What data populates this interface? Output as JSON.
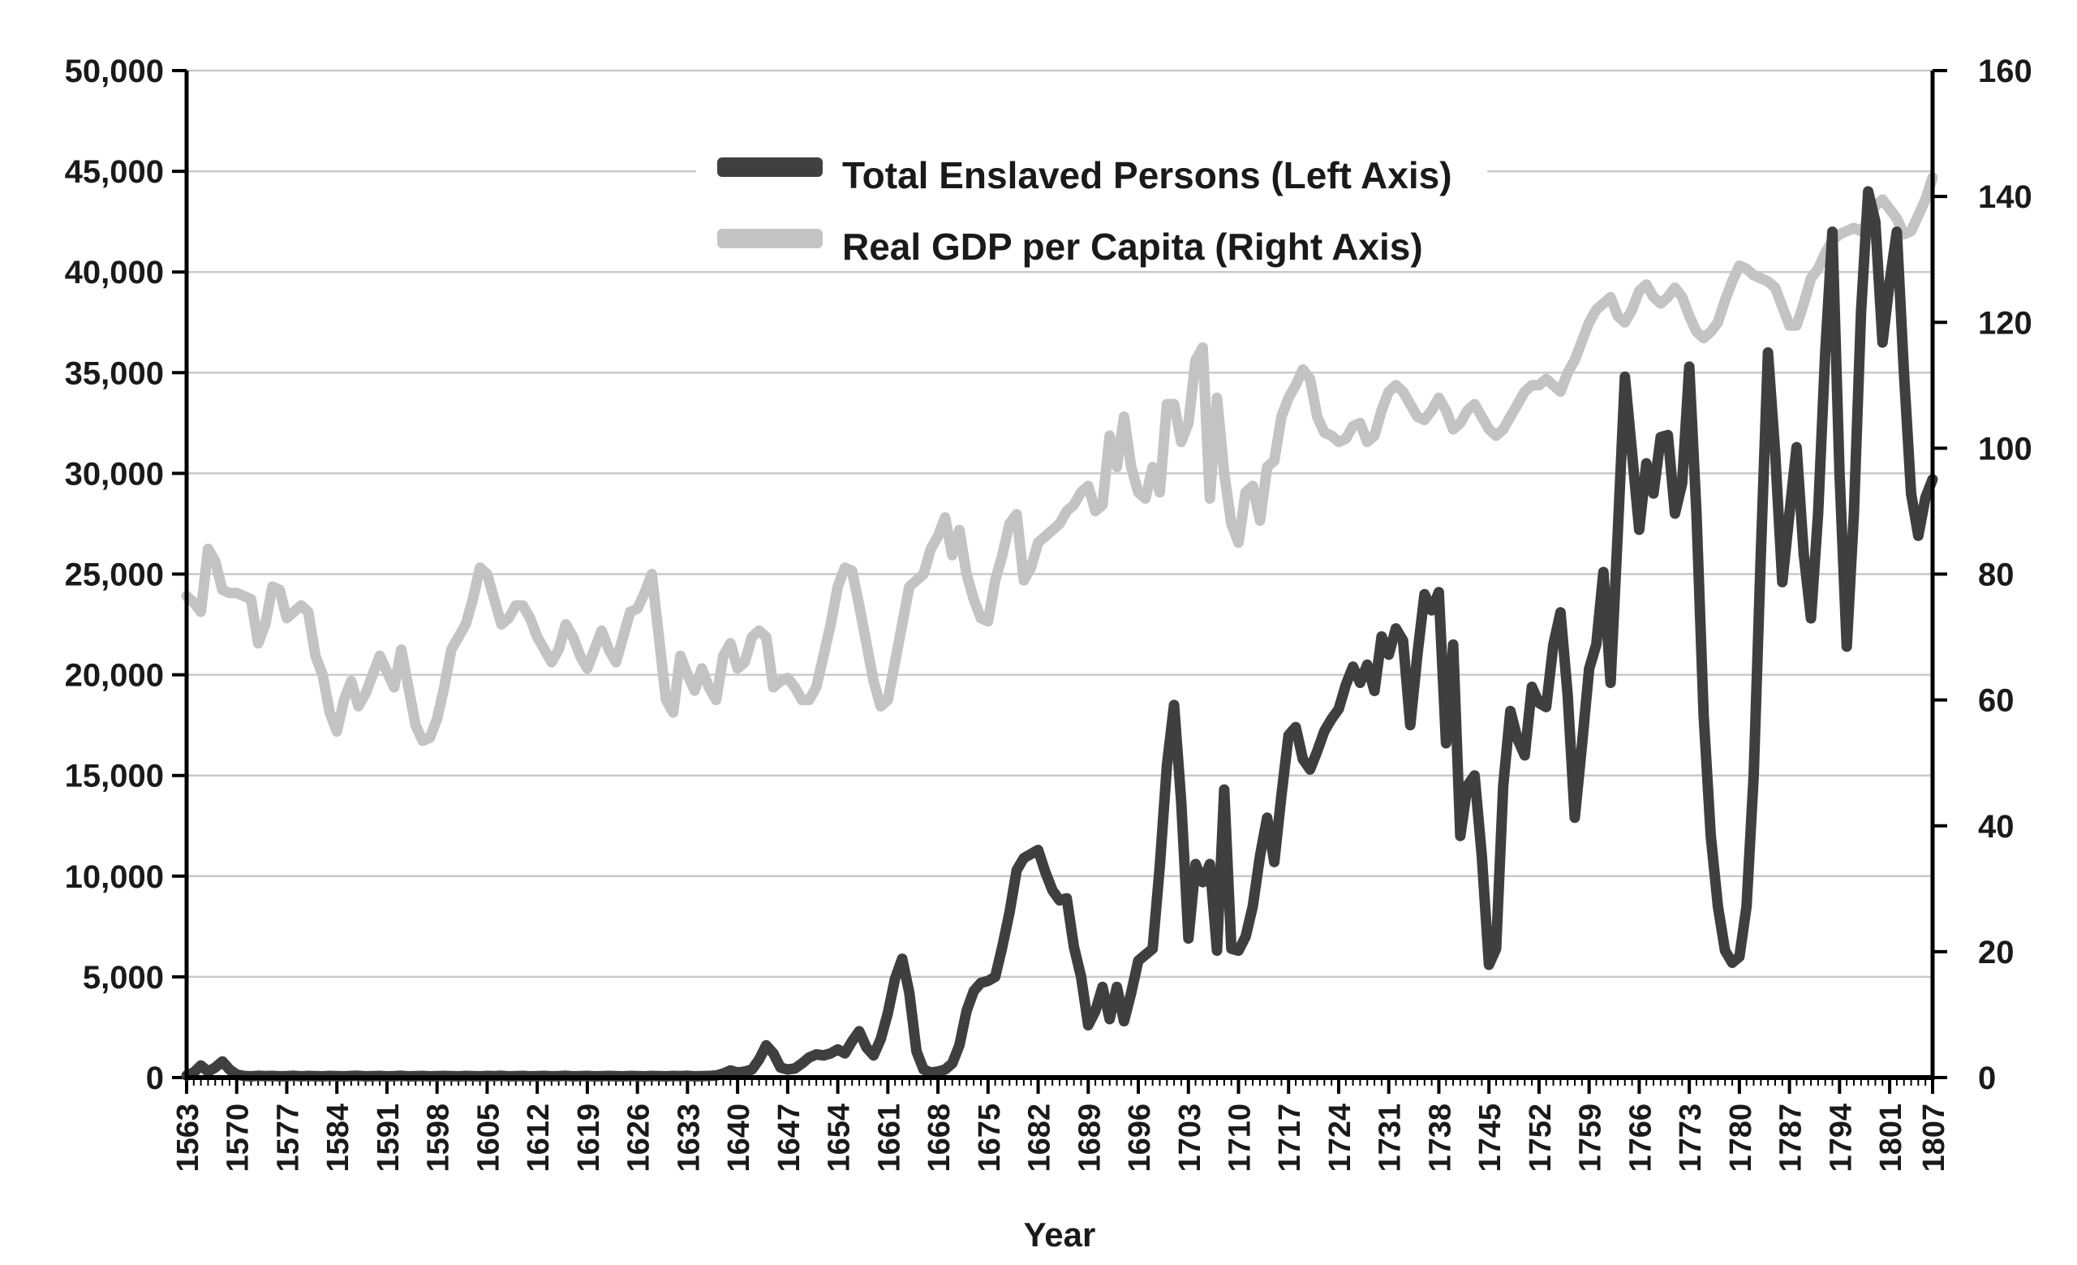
{
  "chart_data": {
    "type": "line",
    "title": "",
    "xlabel": "Year",
    "grid": true,
    "legend_position": "top-center",
    "background_color": "#ffffff",
    "gridline_color": "#c9c9c9",
    "axis_color": "#000000",
    "x_start": 1563,
    "x_end": 1807,
    "x_tick_years": [
      1563,
      1570,
      1577,
      1584,
      1591,
      1598,
      1605,
      1612,
      1619,
      1626,
      1633,
      1640,
      1647,
      1654,
      1661,
      1668,
      1675,
      1682,
      1689,
      1696,
      1703,
      1710,
      1717,
      1724,
      1731,
      1738,
      1745,
      1752,
      1759,
      1766,
      1773,
      1780,
      1787,
      1794,
      1801,
      1807
    ],
    "left_axis": {
      "min": 0,
      "max": 50000,
      "tick_values": [
        0,
        5000,
        10000,
        15000,
        20000,
        25000,
        30000,
        35000,
        40000,
        45000,
        50000
      ],
      "tick_labels": [
        "0",
        "5,000",
        "10,000",
        "15,000",
        "20,000",
        "25,000",
        "30,000",
        "35,000",
        "40,000",
        "45,000",
        "50,000"
      ]
    },
    "right_axis": {
      "min": 0,
      "max": 160,
      "tick_values": [
        0,
        20,
        40,
        60,
        80,
        100,
        120,
        140,
        160
      ],
      "tick_labels": [
        "0",
        "20",
        "40",
        "60",
        "80",
        "100",
        "120",
        "140",
        "160"
      ]
    },
    "series": [
      {
        "name": "Real GDP per Capita",
        "legend_label": "Real GDP per Capita (Right Axis)",
        "axis": "right",
        "color": "#c3c3c3",
        "z": 1,
        "values": [
          76.5,
          75.5,
          74,
          84,
          82,
          77.5,
          77,
          77,
          76.5,
          76,
          69,
          72,
          78,
          77.5,
          73,
          74,
          75,
          74,
          67,
          64,
          58,
          55,
          60,
          63,
          59,
          61,
          64,
          67,
          64.5,
          62,
          68,
          62,
          56,
          53.5,
          54,
          57,
          62,
          68,
          70,
          72,
          76,
          81,
          80,
          76,
          72,
          73,
          75,
          75,
          73,
          70,
          68,
          66,
          68,
          72,
          70,
          67,
          65,
          68,
          71,
          68,
          66,
          70,
          74,
          74.5,
          77,
          80,
          70,
          60,
          58,
          67,
          64,
          61.5,
          65,
          62,
          60,
          67,
          69,
          65,
          66,
          70,
          71,
          70,
          62,
          63,
          63.5,
          62,
          60,
          60,
          62,
          67,
          72,
          78,
          81,
          80.5,
          75,
          69,
          63,
          59,
          60,
          66,
          72,
          78,
          79,
          80,
          84,
          86,
          89,
          83,
          87,
          80,
          76,
          73,
          72.5,
          79,
          83,
          88,
          89.5,
          79,
          81,
          85,
          86,
          87,
          88,
          90,
          91,
          93,
          94,
          90,
          91,
          102,
          97,
          105,
          97,
          93,
          92,
          97,
          93,
          107,
          107,
          101,
          104,
          114,
          116,
          92,
          108,
          96,
          88,
          85,
          93,
          94,
          88.5,
          97,
          98,
          105,
          108,
          110,
          112.5,
          111,
          105,
          102.5,
          102,
          101,
          101.5,
          103.5,
          104,
          101,
          102,
          106,
          109,
          110,
          109,
          107,
          105,
          104.5,
          106,
          108,
          106,
          103,
          104,
          106,
          107,
          105,
          103,
          102,
          103,
          105,
          107,
          109,
          110,
          110,
          111,
          110,
          109,
          112,
          114,
          117,
          120,
          122,
          123,
          124,
          121,
          120,
          122,
          125,
          126,
          124,
          123,
          124,
          125.5,
          124,
          121,
          118.5,
          117.5,
          118.5,
          120,
          123.5,
          126.5,
          129,
          128.5,
          127.5,
          127,
          126.5,
          125.5,
          122.5,
          119.5,
          119.5,
          123,
          127,
          128.5,
          131,
          133,
          134,
          134.5,
          135,
          134.5,
          136,
          138.5,
          139.5,
          138,
          136.5,
          134,
          134.5,
          137,
          139.5,
          143
        ]
      },
      {
        "name": "Total Enslaved Persons",
        "legend_label": "Total Enslaved Persons (Left Axis)",
        "axis": "left",
        "color": "#3f3f3f",
        "z": 2,
        "values": [
          100,
          250,
          600,
          300,
          500,
          800,
          400,
          150,
          80,
          60,
          90,
          70,
          80,
          60,
          70,
          90,
          60,
          80,
          70,
          60,
          80,
          70,
          60,
          80,
          90,
          60,
          70,
          80,
          60,
          70,
          90,
          60,
          70,
          80,
          60,
          70,
          80,
          70,
          60,
          80,
          70,
          60,
          80,
          70,
          90,
          60,
          70,
          80,
          60,
          70,
          80,
          60,
          70,
          90,
          60,
          70,
          80,
          60,
          70,
          80,
          70,
          60,
          80,
          70,
          60,
          80,
          70,
          60,
          80,
          70,
          90,
          60,
          70,
          80,
          100,
          200,
          350,
          250,
          300,
          400,
          900,
          1600,
          1200,
          500,
          400,
          450,
          700,
          1000,
          1150,
          1100,
          1200,
          1400,
          1200,
          1800,
          2300,
          1500,
          1100,
          1900,
          3200,
          4900,
          5900,
          4200,
          1300,
          400,
          250,
          300,
          400,
          700,
          1600,
          3300,
          4300,
          4700,
          4800,
          5000,
          6500,
          8200,
          10300,
          10900,
          11100,
          11300,
          10200,
          9300,
          8800,
          8900,
          6500,
          5000,
          2600,
          3300,
          4500,
          2900,
          4500,
          2800,
          4200,
          5800,
          6100,
          6400,
          10500,
          15500,
          18500,
          13700,
          6900,
          10600,
          9700,
          10600,
          6300,
          14300,
          6400,
          6300,
          7000,
          8500,
          11000,
          12900,
          10700,
          14000,
          17000,
          17400,
          15800,
          15300,
          16200,
          17200,
          17800,
          18300,
          19500,
          20400,
          19600,
          20500,
          19200,
          21900,
          21000,
          22300,
          21700,
          17500,
          21000,
          24000,
          23200,
          24100,
          16600,
          21500,
          12000,
          14500,
          15000,
          11000,
          5600,
          6400,
          14500,
          18200,
          16800,
          16000,
          19400,
          18600,
          18400,
          21500,
          23100,
          19000,
          12900,
          16500,
          20300,
          21500,
          25100,
          19600,
          27000,
          34800,
          31000,
          27200,
          30500,
          29000,
          31800,
          31900,
          28000,
          29500,
          35300,
          28000,
          18000,
          12000,
          8500,
          6300,
          5700,
          6000,
          8500,
          15000,
          26000,
          36000,
          31000,
          24600,
          28000,
          31300,
          26000,
          22800,
          28000,
          36000,
          42000,
          30000,
          21400,
          28000,
          38000,
          44000,
          42500,
          36500,
          39500,
          42000,
          35000,
          29000,
          26900,
          28800,
          29700
        ]
      }
    ]
  }
}
